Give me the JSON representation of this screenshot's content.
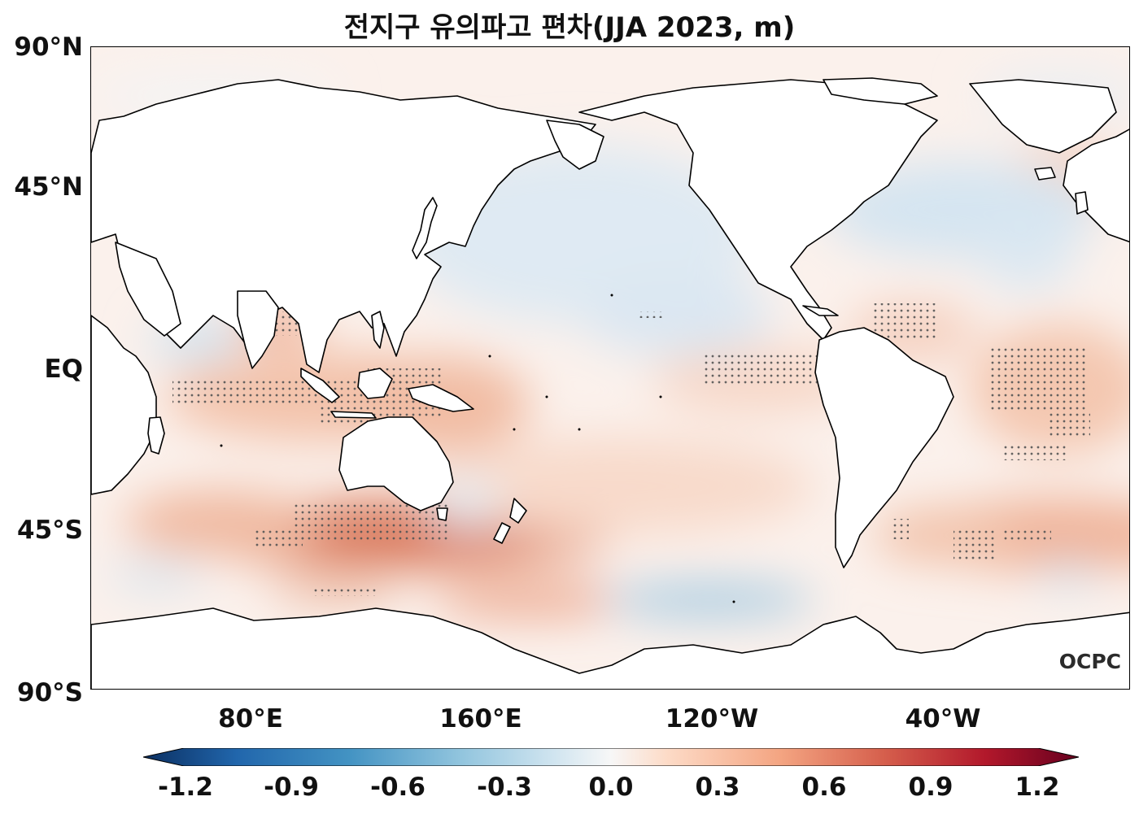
{
  "title": "전지구 유의파고 편차(JJA 2023, m)",
  "lat_labels": [
    "90°N",
    "45°N",
    "EQ",
    "45°S",
    "90°S"
  ],
  "lon_labels": [
    "80°E",
    "160°E",
    "120°W",
    "40°W"
  ],
  "colorbar": {
    "ticks": [
      "-1.2",
      "-0.9",
      "-0.6",
      "-0.3",
      "0.0",
      "0.3",
      "0.6",
      "0.9",
      "1.2"
    ],
    "min": -1.2,
    "max": 1.2,
    "colors": [
      "#0b2f61",
      "#2166ac",
      "#4393c3",
      "#92c5de",
      "#d1e5f0",
      "#f7f7f7",
      "#fddbc7",
      "#f4a582",
      "#d6604d",
      "#b2182b",
      "#67001f"
    ]
  },
  "logo": "OCPC",
  "colors": {
    "land": "#ffffff",
    "coast": "#000000",
    "ocean_base": "#fbf1ec",
    "stipple": "#555555"
  }
}
